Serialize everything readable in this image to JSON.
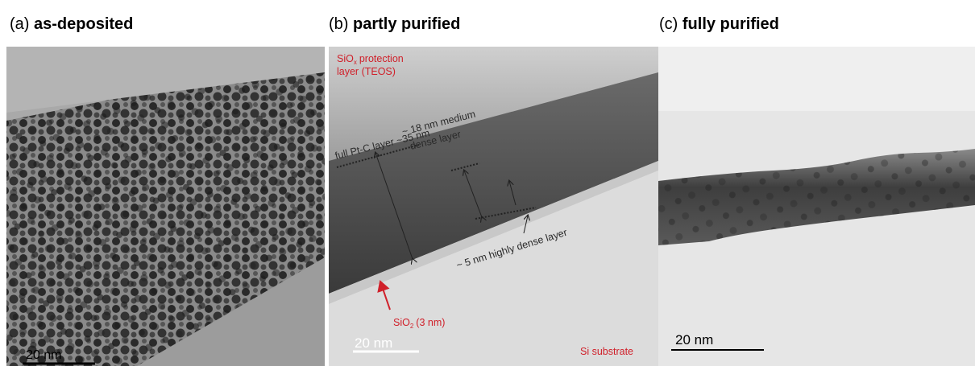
{
  "panels": [
    {
      "label": "(a)",
      "title": "as-deposited",
      "scale_bar": "20 nm"
    },
    {
      "label": "(b)",
      "title": "partly purified",
      "scale_bar": "20 nm",
      "annotations": {
        "protection_layer": {
          "formula": "SiO",
          "subscript": "x",
          "text": "protection",
          "line2": "layer (TEOS)"
        },
        "full_layer": "full Pt-C layer ~35 nm",
        "medium_layer": {
          "line1": "~ 18 nm medium",
          "line2": "dense layer"
        },
        "dense_layer": "~ 5 nm highly dense layer",
        "oxide": {
          "formula": "SiO",
          "subscript": "2",
          "text": "(3 nm)"
        },
        "substrate": "Si substrate"
      }
    },
    {
      "label": "(c)",
      "title": "fully purified",
      "scale_bar": "20 nm"
    }
  ]
}
